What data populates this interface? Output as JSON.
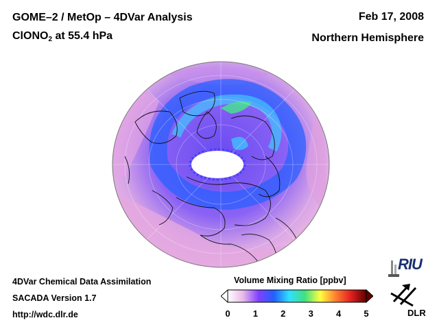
{
  "header": {
    "title_line1": "GOME–2 / MetOp – 4DVar Analysis",
    "species_prefix": "ClONO",
    "species_subscript": "2",
    "species_suffix": " at 55.4 hPa",
    "date": "Feb 17, 2008",
    "region": "Northern Hemisphere"
  },
  "footer": {
    "line1": "4DVar Chemical Data Assimilation",
    "line2": "SACADA Version 1.7",
    "line3": "http://wdc.dlr.de"
  },
  "colorbar": {
    "title": "Volume Mixing Ratio [ppbv]",
    "ticks": [
      "0",
      "1",
      "2",
      "3",
      "4",
      "5"
    ],
    "min": 0,
    "max": 5,
    "colors": [
      "#ffffff",
      "#e8b8e8",
      "#8040ff",
      "#2060ff",
      "#30e0ff",
      "#40e080",
      "#ffff40",
      "#ff8030",
      "#e02020",
      "#600000"
    ]
  },
  "logos": {
    "riu_text": "RIU",
    "dlr_text": "DLR"
  }
}
